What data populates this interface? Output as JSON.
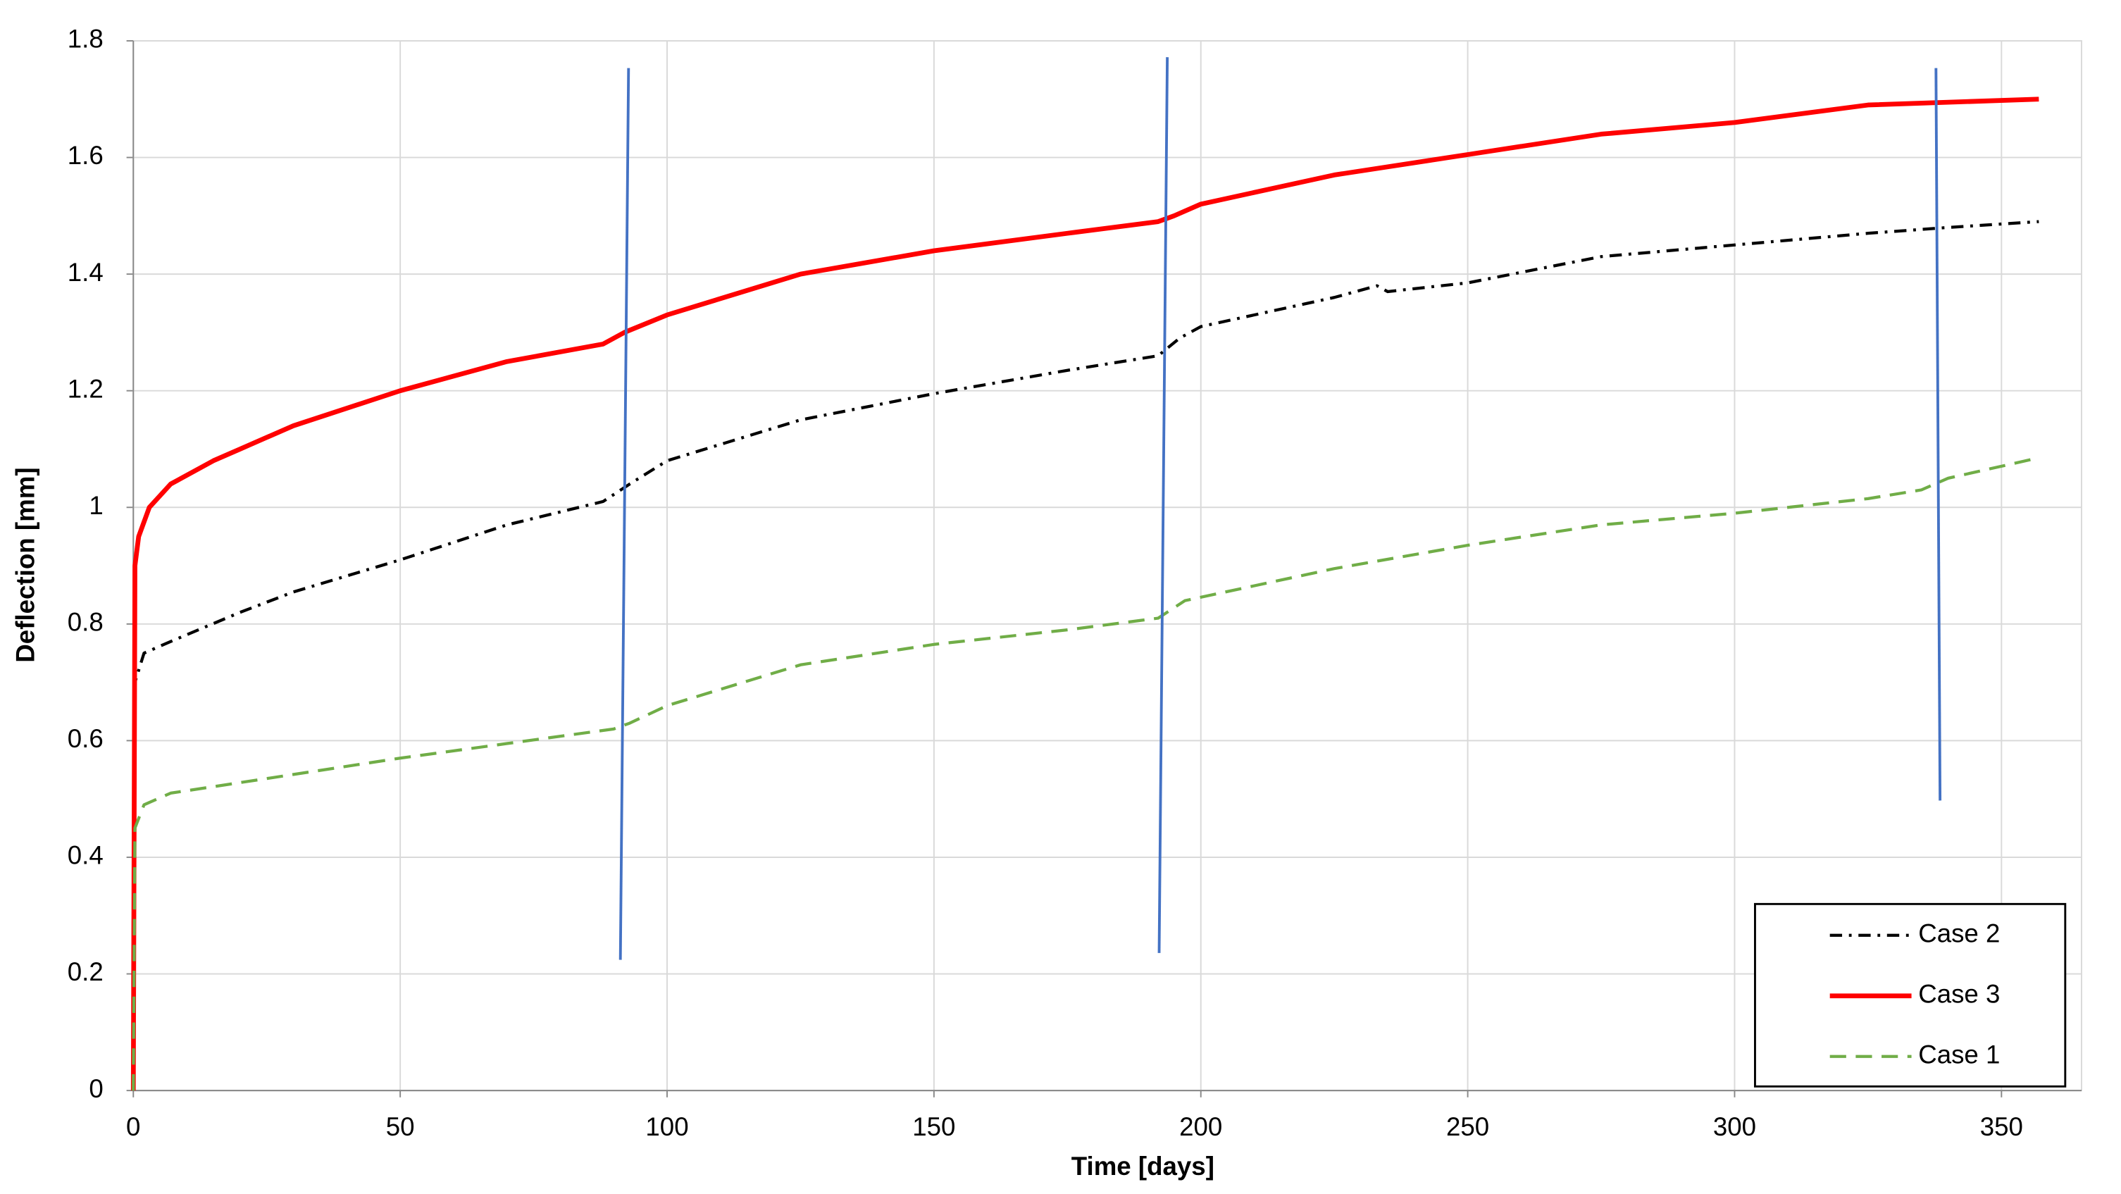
{
  "chart_data": {
    "type": "line",
    "xlabel": "Time [days]",
    "ylabel": "Deflection [mm]",
    "xlim": [
      0,
      365
    ],
    "ylim": [
      0,
      1.8
    ],
    "xticks": [
      0,
      50,
      100,
      150,
      200,
      250,
      300,
      350
    ],
    "yticks": [
      0,
      0.2,
      0.4,
      0.6,
      0.8,
      1,
      1.2,
      1.4,
      1.6,
      1.8
    ],
    "grid": true,
    "legend": "lower right",
    "series": [
      {
        "name": "Case 2",
        "color": "#000000",
        "dash": "dashdot",
        "x": [
          0,
          0.3,
          2,
          7,
          20,
          30,
          50,
          70,
          88,
          93,
          100,
          125,
          150,
          175,
          192,
          196,
          200,
          225,
          233,
          235,
          250,
          275,
          300,
          325,
          340,
          357
        ],
        "values": [
          0,
          0.7,
          0.75,
          0.77,
          0.82,
          0.855,
          0.91,
          0.97,
          1.01,
          1.04,
          1.08,
          1.15,
          1.195,
          1.235,
          1.26,
          1.29,
          1.31,
          1.36,
          1.38,
          1.37,
          1.385,
          1.43,
          1.45,
          1.47,
          1.48,
          1.49
        ]
      },
      {
        "name": "Case 3",
        "color": "#ff0000",
        "dash": "solid",
        "x": [
          0,
          0.3,
          1,
          3,
          7,
          15,
          20,
          30,
          50,
          70,
          88,
          92,
          100,
          125,
          150,
          175,
          192,
          195,
          200,
          225,
          250,
          275,
          300,
          325,
          357
        ],
        "values": [
          0,
          0.9,
          0.95,
          1.0,
          1.04,
          1.08,
          1.1,
          1.14,
          1.2,
          1.25,
          1.28,
          1.3,
          1.33,
          1.4,
          1.44,
          1.47,
          1.49,
          1.5,
          1.52,
          1.57,
          1.605,
          1.64,
          1.66,
          1.69,
          1.7
        ]
      },
      {
        "name": "Case 1",
        "color": "#70ad47",
        "dash": "dashed",
        "x": [
          0,
          0.3,
          2,
          7,
          25,
          50,
          70,
          90,
          93,
          100,
          125,
          150,
          175,
          192,
          197,
          225,
          250,
          275,
          300,
          325,
          335,
          340,
          357
        ],
        "values": [
          0,
          0.45,
          0.49,
          0.51,
          0.535,
          0.57,
          0.595,
          0.62,
          0.63,
          0.66,
          0.73,
          0.765,
          0.79,
          0.81,
          0.84,
          0.895,
          0.935,
          0.97,
          0.99,
          1.015,
          1.03,
          1.05,
          1.085
        ]
      }
    ]
  }
}
